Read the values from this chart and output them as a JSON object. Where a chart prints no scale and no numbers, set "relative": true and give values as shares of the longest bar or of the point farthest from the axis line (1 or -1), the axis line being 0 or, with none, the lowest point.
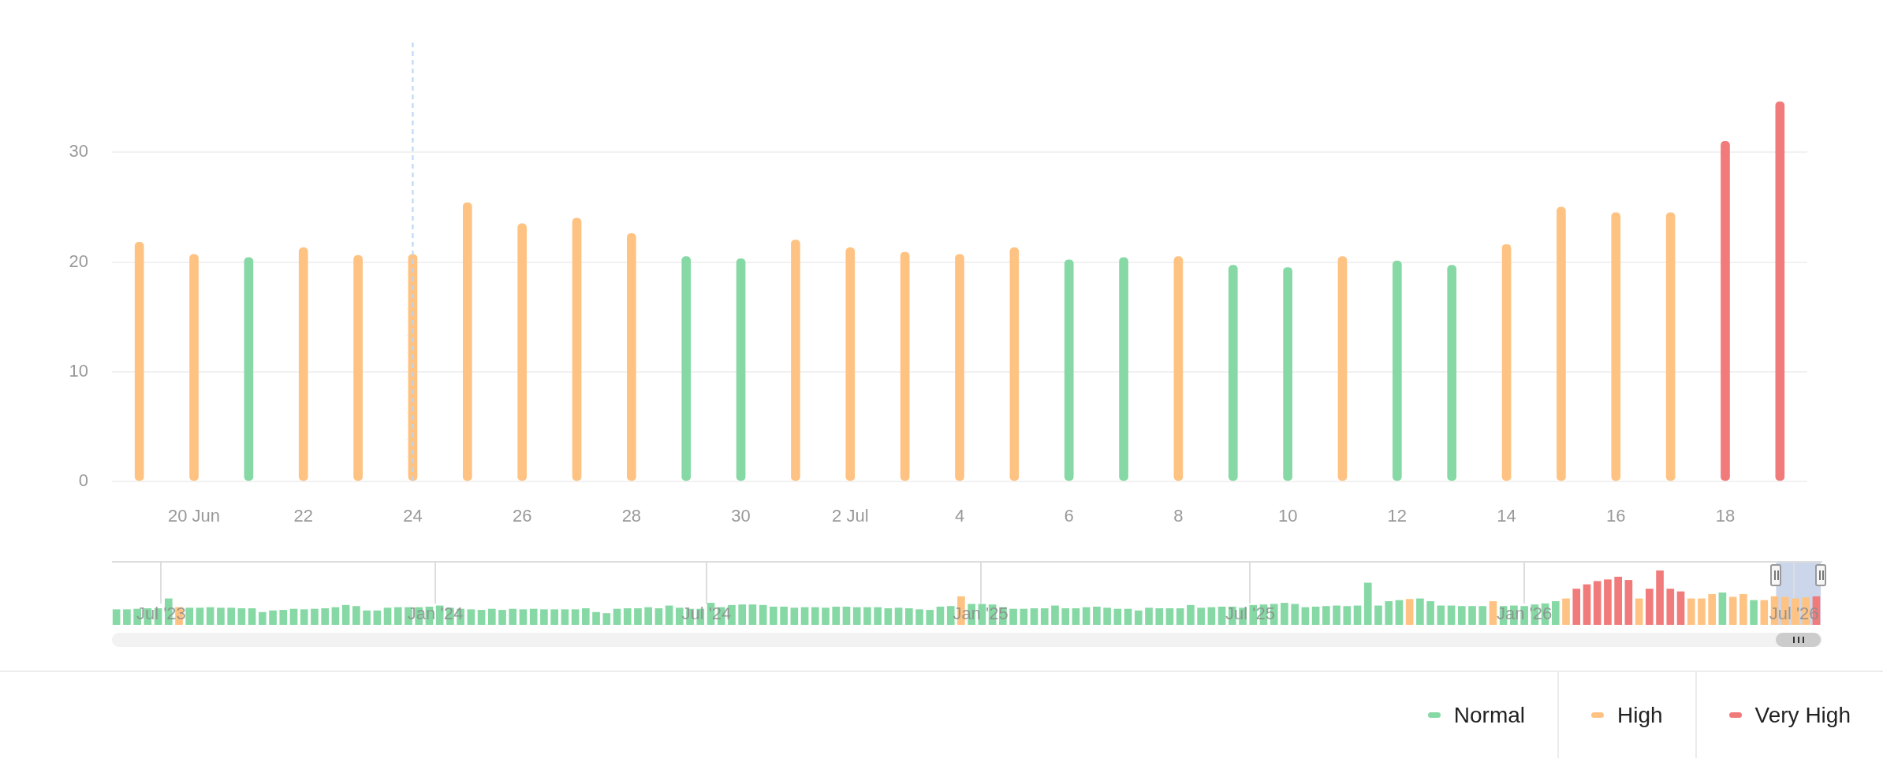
{
  "chart_data": [
    {
      "type": "bar",
      "categories": [
        null,
        "20 Jun",
        null,
        "22",
        null,
        "24",
        null,
        "26",
        null,
        "28",
        null,
        "30",
        null,
        "2 Jul",
        null,
        "4",
        null,
        "6",
        null,
        "8",
        null,
        "10",
        null,
        "12",
        null,
        "14",
        null,
        "16",
        null,
        "18",
        null
      ],
      "series": [
        {
          "name": "Normal",
          "color": "#86d9a5",
          "values": [
            null,
            null,
            20.4,
            null,
            null,
            null,
            null,
            null,
            null,
            null,
            20.5,
            20.3,
            null,
            null,
            null,
            null,
            null,
            20.2,
            20.4,
            null,
            19.7,
            19.5,
            null,
            20.1,
            19.7,
            null,
            null,
            null,
            null,
            null,
            null
          ]
        },
        {
          "name": "High",
          "color": "#fec382",
          "values": [
            21.8,
            20.7,
            null,
            21.3,
            20.6,
            20.7,
            25.4,
            23.5,
            24,
            22.6,
            null,
            null,
            22,
            21.3,
            20.9,
            20.7,
            21.3,
            null,
            null,
            20.5,
            null,
            null,
            20.5,
            null,
            null,
            21.6,
            25,
            24.5,
            24.5,
            null,
            null
          ]
        },
        {
          "name": "Very High",
          "color": "#f17b7b",
          "values": [
            null,
            null,
            null,
            null,
            null,
            null,
            null,
            null,
            null,
            null,
            null,
            null,
            null,
            null,
            null,
            null,
            null,
            null,
            null,
            null,
            null,
            null,
            null,
            null,
            null,
            null,
            null,
            null,
            null,
            31,
            34.6
          ]
        }
      ],
      "ylim": [
        0,
        40
      ],
      "yticks": [
        0,
        10,
        20,
        30
      ],
      "grid": "y",
      "legend": "bottom right",
      "ref_lines": [
        {
          "axis": "x",
          "value": "24",
          "color": "#b9d6f8",
          "line_style": "dashed"
        }
      ]
    },
    {
      "type": "bar",
      "relative": true,
      "x": [
        "2023-06-01",
        "2023-06-08",
        "2023-06-15",
        "2023-06-22",
        "2023-06-29",
        "2023-07-06",
        "2023-07-13",
        "2023-07-20",
        "2023-07-27",
        "2023-08-03",
        "2023-08-10",
        "2023-08-17",
        "2023-08-24",
        "2023-08-31",
        "2023-09-07",
        "2023-09-14",
        "2023-09-21",
        "2023-09-28",
        "2023-10-05",
        "2023-10-12",
        "2023-10-19",
        "2023-10-26",
        "2023-11-02",
        "2023-11-09",
        "2023-11-16",
        "2023-11-23",
        "2023-11-30",
        "2023-12-07",
        "2023-12-14",
        "2023-12-21",
        "2023-12-28",
        "2024-01-04",
        "2024-01-11",
        "2024-01-18",
        "2024-01-25",
        "2024-02-01",
        "2024-02-08",
        "2024-02-15",
        "2024-02-22",
        "2024-02-29",
        "2024-03-07",
        "2024-03-14",
        "2024-03-21",
        "2024-03-28",
        "2024-04-04",
        "2024-04-11",
        "2024-04-18",
        "2024-04-25",
        "2024-05-02",
        "2024-05-09",
        "2024-05-16",
        "2024-05-23",
        "2024-05-30",
        "2024-06-06",
        "2024-06-13",
        "2024-06-20",
        "2024-06-27",
        "2024-07-04",
        "2024-07-11",
        "2024-07-18",
        "2024-07-25",
        "2024-08-01",
        "2024-08-08",
        "2024-08-15",
        "2024-08-22",
        "2024-08-29",
        "2024-09-05",
        "2024-09-12",
        "2024-09-19",
        "2024-09-26",
        "2024-10-03",
        "2024-10-10",
        "2024-10-17",
        "2024-10-24",
        "2024-10-31",
        "2024-11-07",
        "2024-11-14",
        "2024-11-21",
        "2024-11-28",
        "2024-12-05",
        "2024-12-12",
        "2024-12-19",
        "2024-12-26",
        "2025-01-02",
        "2025-01-09",
        "2025-01-16",
        "2025-01-23",
        "2025-01-30",
        "2025-02-06",
        "2025-02-13",
        "2025-02-20",
        "2025-02-27",
        "2025-03-06",
        "2025-03-13",
        "2025-03-20",
        "2025-03-27",
        "2025-04-03",
        "2025-04-10",
        "2025-04-17",
        "2025-04-24",
        "2025-05-01",
        "2025-05-08",
        "2025-05-15",
        "2025-05-22",
        "2025-05-29",
        "2025-06-05",
        "2025-06-12",
        "2025-06-19",
        "2025-06-26",
        "2025-07-03",
        "2025-07-10",
        "2025-07-17",
        "2025-07-24",
        "2025-07-31",
        "2025-08-07",
        "2025-08-14",
        "2025-08-21",
        "2025-08-28",
        "2025-09-04",
        "2025-09-11",
        "2025-09-18",
        "2025-09-25",
        "2025-10-02",
        "2025-10-09",
        "2025-10-16",
        "2025-10-23",
        "2025-10-30",
        "2025-11-06",
        "2025-11-13",
        "2025-11-20",
        "2025-11-27",
        "2025-12-04",
        "2025-12-11",
        "2025-12-18",
        "2025-12-25",
        "2026-01-01",
        "2026-01-08",
        "2026-01-15",
        "2026-01-22",
        "2026-01-29",
        "2026-02-05",
        "2026-02-12",
        "2026-02-19",
        "2026-02-26",
        "2026-03-05",
        "2026-03-12",
        "2026-03-19",
        "2026-03-26",
        "2026-04-02",
        "2026-04-09",
        "2026-04-16",
        "2026-04-23",
        "2026-04-30",
        "2026-05-07",
        "2026-05-14",
        "2026-05-21",
        "2026-05-28",
        "2026-06-04",
        "2026-06-11",
        "2026-06-18",
        "2026-06-25",
        "2026-07-02",
        "2026-07-09",
        "2026-07-16"
      ],
      "values": [
        0.28,
        0.28,
        0.29,
        0.3,
        0.3,
        0.48,
        0.32,
        0.31,
        0.31,
        0.32,
        0.31,
        0.31,
        0.3,
        0.3,
        0.23,
        0.26,
        0.27,
        0.29,
        0.28,
        0.29,
        0.3,
        0.32,
        0.36,
        0.34,
        0.26,
        0.26,
        0.31,
        0.32,
        0.32,
        0.32,
        0.33,
        0.35,
        0.31,
        0.29,
        0.28,
        0.27,
        0.29,
        0.27,
        0.29,
        0.28,
        0.29,
        0.28,
        0.28,
        0.28,
        0.28,
        0.3,
        0.23,
        0.21,
        0.29,
        0.3,
        0.3,
        0.32,
        0.3,
        0.35,
        0.31,
        0.29,
        0.29,
        0.4,
        0.32,
        0.36,
        0.37,
        0.37,
        0.36,
        0.33,
        0.33,
        0.31,
        0.32,
        0.32,
        0.31,
        0.33,
        0.33,
        0.32,
        0.32,
        0.32,
        0.3,
        0.31,
        0.3,
        0.28,
        0.27,
        0.33,
        0.34,
        0.52,
        0.38,
        0.38,
        0.37,
        0.32,
        0.29,
        0.29,
        0.3,
        0.3,
        0.35,
        0.3,
        0.3,
        0.32,
        0.33,
        0.31,
        0.29,
        0.29,
        0.26,
        0.31,
        0.3,
        0.3,
        0.3,
        0.36,
        0.31,
        0.32,
        0.33,
        0.33,
        0.31,
        0.36,
        0.37,
        0.38,
        0.4,
        0.38,
        0.32,
        0.33,
        0.34,
        0.35,
        0.34,
        0.35,
        0.77,
        0.35,
        0.43,
        0.45,
        0.47,
        0.48,
        0.43,
        0.35,
        0.35,
        0.34,
        0.34,
        0.34,
        0.43,
        0.34,
        0.35,
        0.34,
        0.37,
        0.39,
        0.43,
        0.48,
        0.66,
        0.74,
        0.8,
        0.83,
        0.88,
        0.82,
        0.48,
        0.66,
        1,
        0.66,
        0.61,
        0.48,
        0.48,
        0.56,
        0.59,
        0.51,
        0.56,
        0.45,
        0.45,
        0.52,
        0.51,
        0.48,
        0.5,
        0.52
      ],
      "colors": [
        "#86d9a5",
        "#86d9a5",
        "#86d9a5",
        "#86d9a5",
        "#86d9a5",
        "#86d9a5",
        "#fec382",
        "#86d9a5",
        "#86d9a5",
        "#86d9a5",
        "#86d9a5",
        "#86d9a5",
        "#86d9a5",
        "#86d9a5",
        "#86d9a5",
        "#86d9a5",
        "#86d9a5",
        "#86d9a5",
        "#86d9a5",
        "#86d9a5",
        "#86d9a5",
        "#86d9a5",
        "#86d9a5",
        "#86d9a5",
        "#86d9a5",
        "#86d9a5",
        "#86d9a5",
        "#86d9a5",
        "#86d9a5",
        "#86d9a5",
        "#86d9a5",
        "#86d9a5",
        "#86d9a5",
        "#86d9a5",
        "#86d9a5",
        "#86d9a5",
        "#86d9a5",
        "#86d9a5",
        "#86d9a5",
        "#86d9a5",
        "#86d9a5",
        "#86d9a5",
        "#86d9a5",
        "#86d9a5",
        "#86d9a5",
        "#86d9a5",
        "#86d9a5",
        "#86d9a5",
        "#86d9a5",
        "#86d9a5",
        "#86d9a5",
        "#86d9a5",
        "#86d9a5",
        "#86d9a5",
        "#86d9a5",
        "#86d9a5",
        "#86d9a5",
        "#86d9a5",
        "#86d9a5",
        "#86d9a5",
        "#86d9a5",
        "#86d9a5",
        "#86d9a5",
        "#86d9a5",
        "#86d9a5",
        "#86d9a5",
        "#86d9a5",
        "#86d9a5",
        "#86d9a5",
        "#86d9a5",
        "#86d9a5",
        "#86d9a5",
        "#86d9a5",
        "#86d9a5",
        "#86d9a5",
        "#86d9a5",
        "#86d9a5",
        "#86d9a5",
        "#86d9a5",
        "#86d9a5",
        "#86d9a5",
        "#fec382",
        "#86d9a5",
        "#86d9a5",
        "#86d9a5",
        "#86d9a5",
        "#86d9a5",
        "#86d9a5",
        "#86d9a5",
        "#86d9a5",
        "#86d9a5",
        "#86d9a5",
        "#86d9a5",
        "#86d9a5",
        "#86d9a5",
        "#86d9a5",
        "#86d9a5",
        "#86d9a5",
        "#86d9a5",
        "#86d9a5",
        "#86d9a5",
        "#86d9a5",
        "#86d9a5",
        "#86d9a5",
        "#86d9a5",
        "#86d9a5",
        "#86d9a5",
        "#86d9a5",
        "#86d9a5",
        "#86d9a5",
        "#86d9a5",
        "#86d9a5",
        "#86d9a5",
        "#86d9a5",
        "#86d9a5",
        "#86d9a5",
        "#86d9a5",
        "#86d9a5",
        "#86d9a5",
        "#86d9a5",
        "#86d9a5",
        "#86d9a5",
        "#86d9a5",
        "#86d9a5",
        "#fec382",
        "#86d9a5",
        "#86d9a5",
        "#86d9a5",
        "#86d9a5",
        "#86d9a5",
        "#86d9a5",
        "#86d9a5",
        "#fec382",
        "#86d9a5",
        "#86d9a5",
        "#86d9a5",
        "#86d9a5",
        "#86d9a5",
        "#86d9a5",
        "#fec382",
        "#f17b7b",
        "#f17b7b",
        "#f17b7b",
        "#f17b7b",
        "#f17b7b",
        "#f17b7b",
        "#fec382",
        "#f17b7b",
        "#f17b7b",
        "#f17b7b",
        "#f17b7b",
        "#fec382",
        "#fec382",
        "#fec382",
        "#86d9a5",
        "#fec382",
        "#fec382",
        "#86d9a5",
        "#fec382",
        "#fec382",
        "#fec382",
        "#fec382",
        "#fec382",
        "#f17b7b"
      ],
      "xlim": [
        "2023-05-29",
        "2026-07-20"
      ],
      "xticks": [
        {
          "value": "2023-07-01",
          "label": "Jul '23"
        },
        {
          "value": "2024-01-01",
          "label": "Jan '24"
        },
        {
          "value": "2024-07-01",
          "label": "Jul '24"
        },
        {
          "value": "2025-01-01",
          "label": "Jan '25"
        },
        {
          "value": "2025-07-01",
          "label": "Jul '25"
        },
        {
          "value": "2026-01-01",
          "label": "Jan '26"
        },
        {
          "value": "2026-07-01",
          "label": "Jul '26"
        }
      ],
      "grid": "x",
      "bands": [
        {
          "axis": "x",
          "from": "2026-06-19",
          "to": "2026-07-19",
          "color": "#ccd6eb"
        }
      ]
    }
  ]
}
